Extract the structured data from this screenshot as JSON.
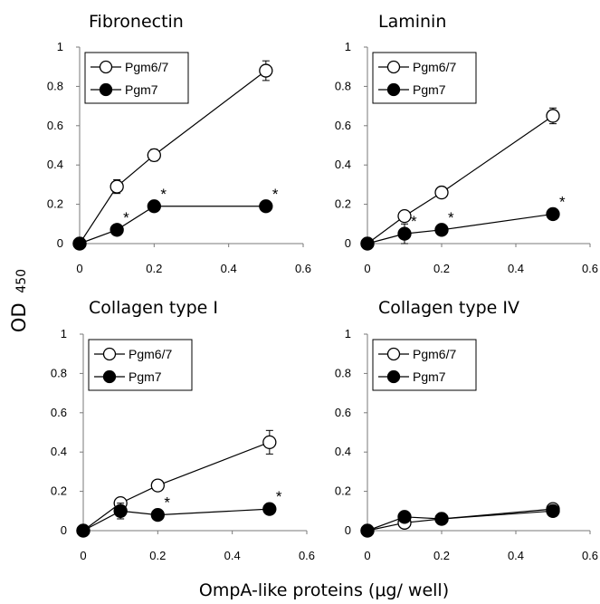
{
  "figure": {
    "ylabel_main": "OD",
    "ylabel_sub": "450",
    "xlabel": "OmpA-like proteins (μg/ well)"
  },
  "chart_data": [
    {
      "type": "line",
      "title": "Fibronectin",
      "xlim": [
        0,
        0.6
      ],
      "ylim": [
        0,
        1
      ],
      "xticks": [
        "0",
        "0.2",
        "0.4",
        "0.6"
      ],
      "yticks": [
        "0",
        "0.2",
        "0.4",
        "0.6",
        "0.8",
        "1"
      ],
      "legend": "top-left",
      "series": [
        {
          "name": "Pgm6/7",
          "marker": "open-circle",
          "x": [
            0,
            0.1,
            0.2,
            0.5
          ],
          "y": [
            0,
            0.29,
            0.45,
            0.88
          ],
          "err": [
            0,
            0.035,
            0.03,
            0.05
          ]
        },
        {
          "name": "Pgm7",
          "marker": "filled-circle",
          "x": [
            0,
            0.1,
            0.2,
            0.5
          ],
          "y": [
            0,
            0.07,
            0.19,
            0.19
          ],
          "err": [
            0,
            0.02,
            0.015,
            0.015
          ],
          "significant": [
            false,
            true,
            true,
            true
          ]
        }
      ]
    },
    {
      "type": "line",
      "title": "Laminin",
      "xlim": [
        0,
        0.6
      ],
      "ylim": [
        0,
        1
      ],
      "xticks": [
        "0",
        "0.2",
        "0.4",
        "0.6"
      ],
      "yticks": [
        "0",
        "0.2",
        "0.4",
        "0.6",
        "0.8",
        "1"
      ],
      "legend": "top-left",
      "series": [
        {
          "name": "Pgm6/7",
          "marker": "open-circle",
          "x": [
            0,
            0.1,
            0.2,
            0.5
          ],
          "y": [
            0,
            0.14,
            0.26,
            0.65
          ],
          "err": [
            0,
            0.015,
            0.015,
            0.04
          ]
        },
        {
          "name": "Pgm7",
          "marker": "filled-circle",
          "x": [
            0,
            0.1,
            0.2,
            0.5
          ],
          "y": [
            0,
            0.05,
            0.07,
            0.15
          ],
          "err": [
            0,
            0.05,
            0.02,
            0.02
          ],
          "significant": [
            false,
            true,
            true,
            true
          ]
        }
      ]
    },
    {
      "type": "line",
      "title": "Collagen type I",
      "xlim": [
        0,
        0.6
      ],
      "ylim": [
        0,
        1
      ],
      "xticks": [
        "0",
        "0.2",
        "0.4",
        "0.6"
      ],
      "yticks": [
        "0",
        "0.2",
        "0.4",
        "0.6",
        "0.8",
        "1"
      ],
      "legend": "top-left",
      "series": [
        {
          "name": "Pgm6/7",
          "marker": "open-circle",
          "x": [
            0,
            0.1,
            0.2,
            0.5
          ],
          "y": [
            0,
            0.14,
            0.23,
            0.45
          ],
          "err": [
            0,
            0.015,
            0.015,
            0.06
          ]
        },
        {
          "name": "Pgm7",
          "marker": "filled-circle",
          "x": [
            0,
            0.1,
            0.2,
            0.5
          ],
          "y": [
            0,
            0.1,
            0.08,
            0.11
          ],
          "err": [
            0,
            0.04,
            0.015,
            0.015
          ],
          "significant": [
            false,
            false,
            true,
            true
          ]
        }
      ]
    },
    {
      "type": "line",
      "title": "Collagen type IV",
      "xlim": [
        0,
        0.6
      ],
      "ylim": [
        0,
        1
      ],
      "xticks": [
        "0",
        "0.2",
        "0.4",
        "0.6"
      ],
      "yticks": [
        "0",
        "0.2",
        "0.4",
        "0.6",
        "0.8",
        "1"
      ],
      "legend": "top-left",
      "series": [
        {
          "name": "Pgm6/7",
          "marker": "open-circle",
          "x": [
            0,
            0.1,
            0.2,
            0.5
          ],
          "y": [
            0,
            0.04,
            0.06,
            0.11
          ],
          "err": [
            0,
            0.01,
            0.01,
            0.01
          ]
        },
        {
          "name": "Pgm7",
          "marker": "filled-circle",
          "x": [
            0,
            0.1,
            0.2,
            0.5
          ],
          "y": [
            0,
            0.07,
            0.06,
            0.1
          ],
          "err": [
            0,
            0.01,
            0.01,
            0.01
          ],
          "significant": [
            false,
            false,
            false,
            false
          ]
        }
      ]
    }
  ]
}
